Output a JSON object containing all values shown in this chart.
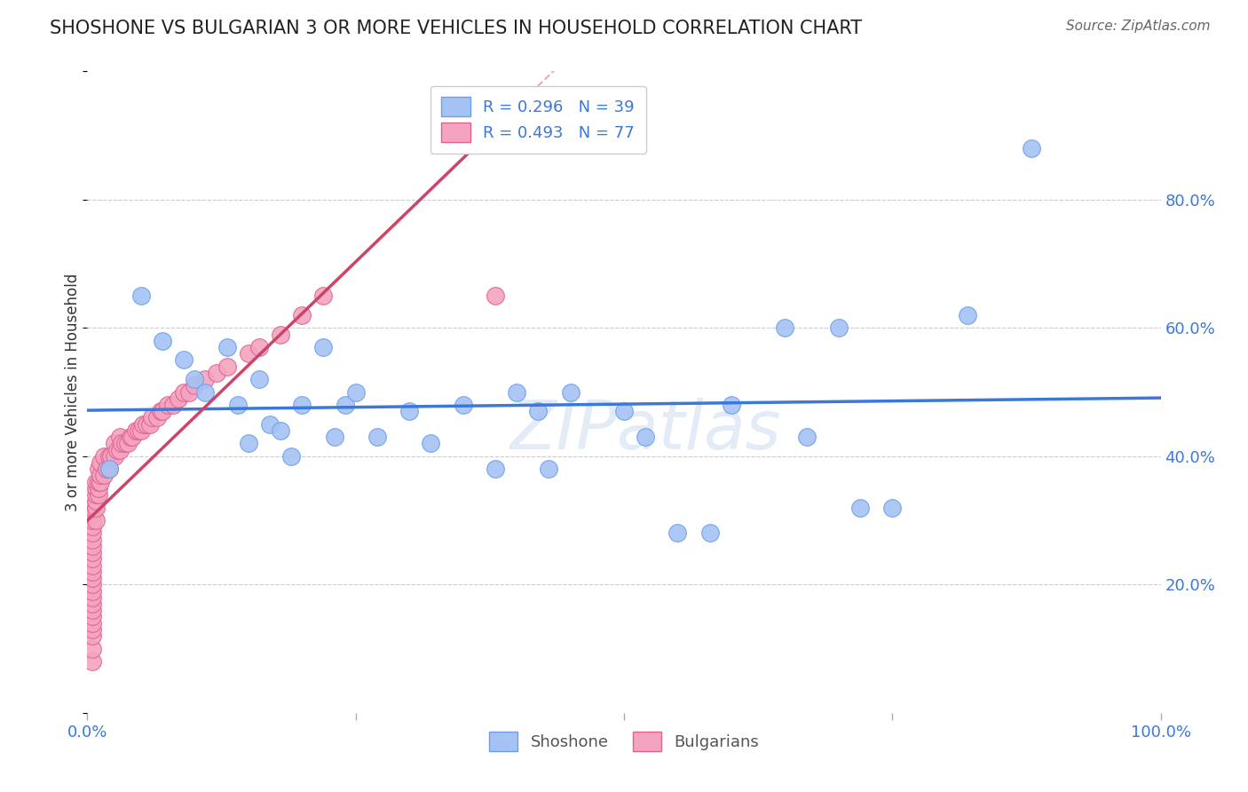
{
  "title": "SHOSHONE VS BULGARIAN 3 OR MORE VEHICLES IN HOUSEHOLD CORRELATION CHART",
  "source": "Source: ZipAtlas.com",
  "ylabel": "3 or more Vehicles in Household",
  "ytick_labels": [
    "20.0%",
    "40.0%",
    "60.0%",
    "80.0%"
  ],
  "ytick_values": [
    0.2,
    0.4,
    0.6,
    0.8
  ],
  "shoshone_color": "#a4c2f4",
  "bulgarian_color": "#f4a4c0",
  "shoshone_edge_color": "#6d9eeb",
  "bulgarian_edge_color": "#e06090",
  "shoshone_line_color": "#3c78d8",
  "bulgarian_line_color": "#cc4466",
  "shoshone_x": [
    0.02,
    0.05,
    0.07,
    0.09,
    0.1,
    0.11,
    0.13,
    0.14,
    0.15,
    0.16,
    0.17,
    0.18,
    0.19,
    0.2,
    0.22,
    0.23,
    0.24,
    0.25,
    0.27,
    0.3,
    0.32,
    0.35,
    0.38,
    0.4,
    0.42,
    0.43,
    0.45,
    0.5,
    0.52,
    0.55,
    0.58,
    0.6,
    0.65,
    0.67,
    0.7,
    0.72,
    0.75,
    0.82,
    0.88
  ],
  "shoshone_y": [
    0.38,
    0.65,
    0.58,
    0.55,
    0.52,
    0.5,
    0.57,
    0.48,
    0.42,
    0.52,
    0.45,
    0.44,
    0.4,
    0.48,
    0.57,
    0.43,
    0.48,
    0.5,
    0.43,
    0.47,
    0.42,
    0.48,
    0.38,
    0.5,
    0.47,
    0.38,
    0.5,
    0.47,
    0.43,
    0.28,
    0.28,
    0.48,
    0.6,
    0.43,
    0.6,
    0.32,
    0.32,
    0.62,
    0.88
  ],
  "bulgarian_x": [
    0.005,
    0.005,
    0.005,
    0.005,
    0.005,
    0.005,
    0.005,
    0.005,
    0.005,
    0.005,
    0.005,
    0.005,
    0.005,
    0.005,
    0.005,
    0.005,
    0.005,
    0.005,
    0.005,
    0.005,
    0.005,
    0.005,
    0.005,
    0.008,
    0.008,
    0.008,
    0.008,
    0.008,
    0.008,
    0.01,
    0.01,
    0.01,
    0.01,
    0.012,
    0.012,
    0.012,
    0.015,
    0.015,
    0.018,
    0.02,
    0.02,
    0.022,
    0.025,
    0.025,
    0.028,
    0.03,
    0.03,
    0.032,
    0.035,
    0.038,
    0.04,
    0.042,
    0.045,
    0.048,
    0.05,
    0.052,
    0.055,
    0.058,
    0.06,
    0.065,
    0.068,
    0.07,
    0.075,
    0.08,
    0.085,
    0.09,
    0.095,
    0.1,
    0.11,
    0.12,
    0.13,
    0.15,
    0.16,
    0.18,
    0.2,
    0.22,
    0.38
  ],
  "bulgarian_y": [
    0.08,
    0.1,
    0.12,
    0.13,
    0.14,
    0.15,
    0.16,
    0.17,
    0.18,
    0.19,
    0.2,
    0.21,
    0.22,
    0.23,
    0.24,
    0.25,
    0.26,
    0.27,
    0.28,
    0.29,
    0.3,
    0.31,
    0.32,
    0.3,
    0.32,
    0.33,
    0.34,
    0.35,
    0.36,
    0.34,
    0.35,
    0.36,
    0.38,
    0.36,
    0.37,
    0.39,
    0.37,
    0.4,
    0.38,
    0.38,
    0.4,
    0.4,
    0.4,
    0.42,
    0.41,
    0.41,
    0.43,
    0.42,
    0.42,
    0.42,
    0.43,
    0.43,
    0.44,
    0.44,
    0.44,
    0.45,
    0.45,
    0.45,
    0.46,
    0.46,
    0.47,
    0.47,
    0.48,
    0.48,
    0.49,
    0.5,
    0.5,
    0.51,
    0.52,
    0.53,
    0.54,
    0.56,
    0.57,
    0.59,
    0.62,
    0.65,
    0.65
  ],
  "xlim": [
    0.0,
    1.0
  ],
  "ylim": [
    0.0,
    1.0
  ],
  "background_color": "#ffffff",
  "grid_color": "#cccccc",
  "watermark": "ZIPatlas"
}
